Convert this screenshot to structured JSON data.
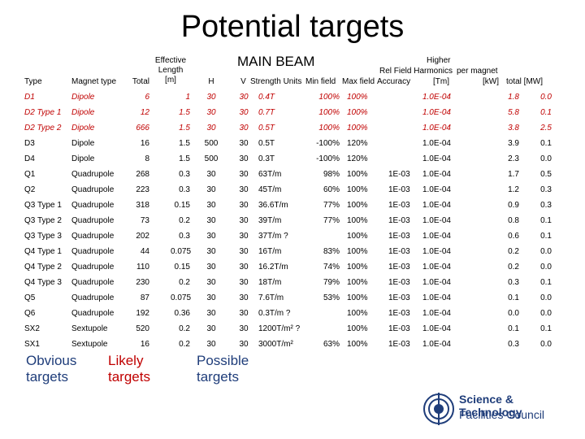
{
  "title": "Potential targets",
  "main_beam": "MAIN BEAM",
  "headers": {
    "type": "Type",
    "magnet_type": "Magnet type",
    "total": "Total",
    "effective_length": [
      "Effective",
      "Length",
      "[m]"
    ],
    "h": "H",
    "v": "V",
    "strength_units": "Strength  Units",
    "min_field": "Min field",
    "max_field": "Max field",
    "accuracy": "Accuracy",
    "higher": "Higher",
    "rel_field_harmonics": "Rel Field Harmonics",
    "tm": "[Tm]",
    "per_magnet": "per magnet",
    "kw": "[kW]",
    "total_mw": "total [MW]"
  },
  "rows": [
    {
      "type": "D1",
      "magnet": "Dipole",
      "total": "6",
      "len": "1",
      "h": "30",
      "v": "30",
      "strength": "0.4T",
      "min": "100%",
      "max": "100%",
      "acc": "",
      "harm": "1.0E-04",
      "kw": "1.8",
      "mw": "0.0",
      "color": "#c00000"
    },
    {
      "type": "D2 Type 1",
      "magnet": "Dipole",
      "total": "12",
      "len": "1.5",
      "h": "30",
      "v": "30",
      "strength": "0.7T",
      "min": "100%",
      "max": "100%",
      "acc": "",
      "harm": "1.0E-04",
      "kw": "5.8",
      "mw": "0.1",
      "color": "#c00000"
    },
    {
      "type": "D2 Type 2",
      "magnet": "Dipole",
      "total": "666",
      "len": "1.5",
      "h": "30",
      "v": "30",
      "strength": "0.5T",
      "min": "100%",
      "max": "100%",
      "acc": "",
      "harm": "1.0E-04",
      "kw": "3.8",
      "mw": "2.5",
      "color": "#c00000"
    },
    {
      "type": "D3",
      "magnet": "Dipole",
      "total": "16",
      "len": "1.5",
      "h": "500",
      "v": "30",
      "strength": "0.5T",
      "min": "-100%",
      "max": "120%",
      "acc": "",
      "harm": "1.0E-04",
      "kw": "3.9",
      "mw": "0.1",
      "color": "#000000"
    },
    {
      "type": "D4",
      "magnet": "Dipole",
      "total": "8",
      "len": "1.5",
      "h": "500",
      "v": "30",
      "strength": "0.3T",
      "min": "-100%",
      "max": "120%",
      "acc": "",
      "harm": "1.0E-04",
      "kw": "2.3",
      "mw": "0.0",
      "color": "#000000"
    },
    {
      "type": "Q1",
      "magnet": "Quadrupole",
      "total": "268",
      "len": "0.3",
      "h": "30",
      "v": "30",
      "strength": "63T/m",
      "min": "98%",
      "max": "100%",
      "acc": "1E-03",
      "harm": "1.0E-04",
      "kw": "1.7",
      "mw": "0.5",
      "color": "#000000"
    },
    {
      "type": "Q2",
      "magnet": "Quadrupole",
      "total": "223",
      "len": "0.3",
      "h": "30",
      "v": "30",
      "strength": "45T/m",
      "min": "60%",
      "max": "100%",
      "acc": "1E-03",
      "harm": "1.0E-04",
      "kw": "1.2",
      "mw": "0.3",
      "color": "#000000"
    },
    {
      "type": "Q3 Type 1",
      "magnet": "Quadrupole",
      "total": "318",
      "len": "0.15",
      "h": "30",
      "v": "30",
      "strength": "36.6T/m",
      "min": "77%",
      "max": "100%",
      "acc": "1E-03",
      "harm": "1.0E-04",
      "kw": "0.9",
      "mw": "0.3",
      "color": "#000000"
    },
    {
      "type": "Q3 Type 2",
      "magnet": "Quadrupole",
      "total": "73",
      "len": "0.2",
      "h": "30",
      "v": "30",
      "strength": "39T/m",
      "min": "77%",
      "max": "100%",
      "acc": "1E-03",
      "harm": "1.0E-04",
      "kw": "0.8",
      "mw": "0.1",
      "color": "#000000"
    },
    {
      "type": "Q3 Type 3",
      "magnet": "Quadrupole",
      "total": "202",
      "len": "0.3",
      "h": "30",
      "v": "30",
      "strength": "37T/m  ?",
      "min": "",
      "max": "100%",
      "acc": "1E-03",
      "harm": "1.0E-04",
      "kw": "0.6",
      "mw": "0.1",
      "color": "#000000"
    },
    {
      "type": "Q4 Type 1",
      "magnet": "Quadrupole",
      "total": "44",
      "len": "0.075",
      "h": "30",
      "v": "30",
      "strength": "16T/m",
      "min": "83%",
      "max": "100%",
      "acc": "1E-03",
      "harm": "1.0E-04",
      "kw": "0.2",
      "mw": "0.0",
      "color": "#000000"
    },
    {
      "type": "Q4 Type 2",
      "magnet": "Quadrupole",
      "total": "110",
      "len": "0.15",
      "h": "30",
      "v": "30",
      "strength": "16.2T/m",
      "min": "74%",
      "max": "100%",
      "acc": "1E-03",
      "harm": "1.0E-04",
      "kw": "0.2",
      "mw": "0.0",
      "color": "#000000"
    },
    {
      "type": "Q4 Type 3",
      "magnet": "Quadrupole",
      "total": "230",
      "len": "0.2",
      "h": "30",
      "v": "30",
      "strength": "18T/m",
      "min": "79%",
      "max": "100%",
      "acc": "1E-03",
      "harm": "1.0E-04",
      "kw": "0.3",
      "mw": "0.1",
      "color": "#000000"
    },
    {
      "type": "Q5",
      "magnet": "Quadrupole",
      "total": "87",
      "len": "0.075",
      "h": "30",
      "v": "30",
      "strength": "7.6T/m",
      "min": "53%",
      "max": "100%",
      "acc": "1E-03",
      "harm": "1.0E-04",
      "kw": "0.1",
      "mw": "0.0",
      "color": "#000000"
    },
    {
      "type": "Q6",
      "magnet": "Quadrupole",
      "total": "192",
      "len": "0.36",
      "h": "30",
      "v": "30",
      "strength": "0.3T/m  ?",
      "min": "",
      "max": "100%",
      "acc": "1E-03",
      "harm": "1.0E-04",
      "kw": "0.0",
      "mw": "0.0",
      "color": "#000000"
    },
    {
      "type": "SX2",
      "magnet": "Sextupole",
      "total": "520",
      "len": "0.2",
      "h": "30",
      "v": "30",
      "strength": "1200T/m²  ?",
      "min": "",
      "max": "100%",
      "acc": "1E-03",
      "harm": "1.0E-04",
      "kw": "0.1",
      "mw": "0.1",
      "color": "#000000"
    },
    {
      "type": "SX1",
      "magnet": "Sextupole",
      "total": "16",
      "len": "0.2",
      "h": "30",
      "v": "30",
      "strength": "3000T/m²",
      "min": "63%",
      "max": "100%",
      "acc": "1E-03",
      "harm": "1.0E-04",
      "kw": "0.3",
      "mw": "0.0",
      "color": "#000000"
    }
  ],
  "legend": {
    "obvious": "Obvious targets",
    "likely": "Likely targets",
    "possible": "Possible targets",
    "obvious_color": "#1f3d7a",
    "likely_color": "#c00000",
    "possible_color": "#1f3d7a"
  },
  "logo": {
    "line1": "Science & Technology",
    "line2": "Facilities Council",
    "icon": "stfc-logo-icon"
  }
}
